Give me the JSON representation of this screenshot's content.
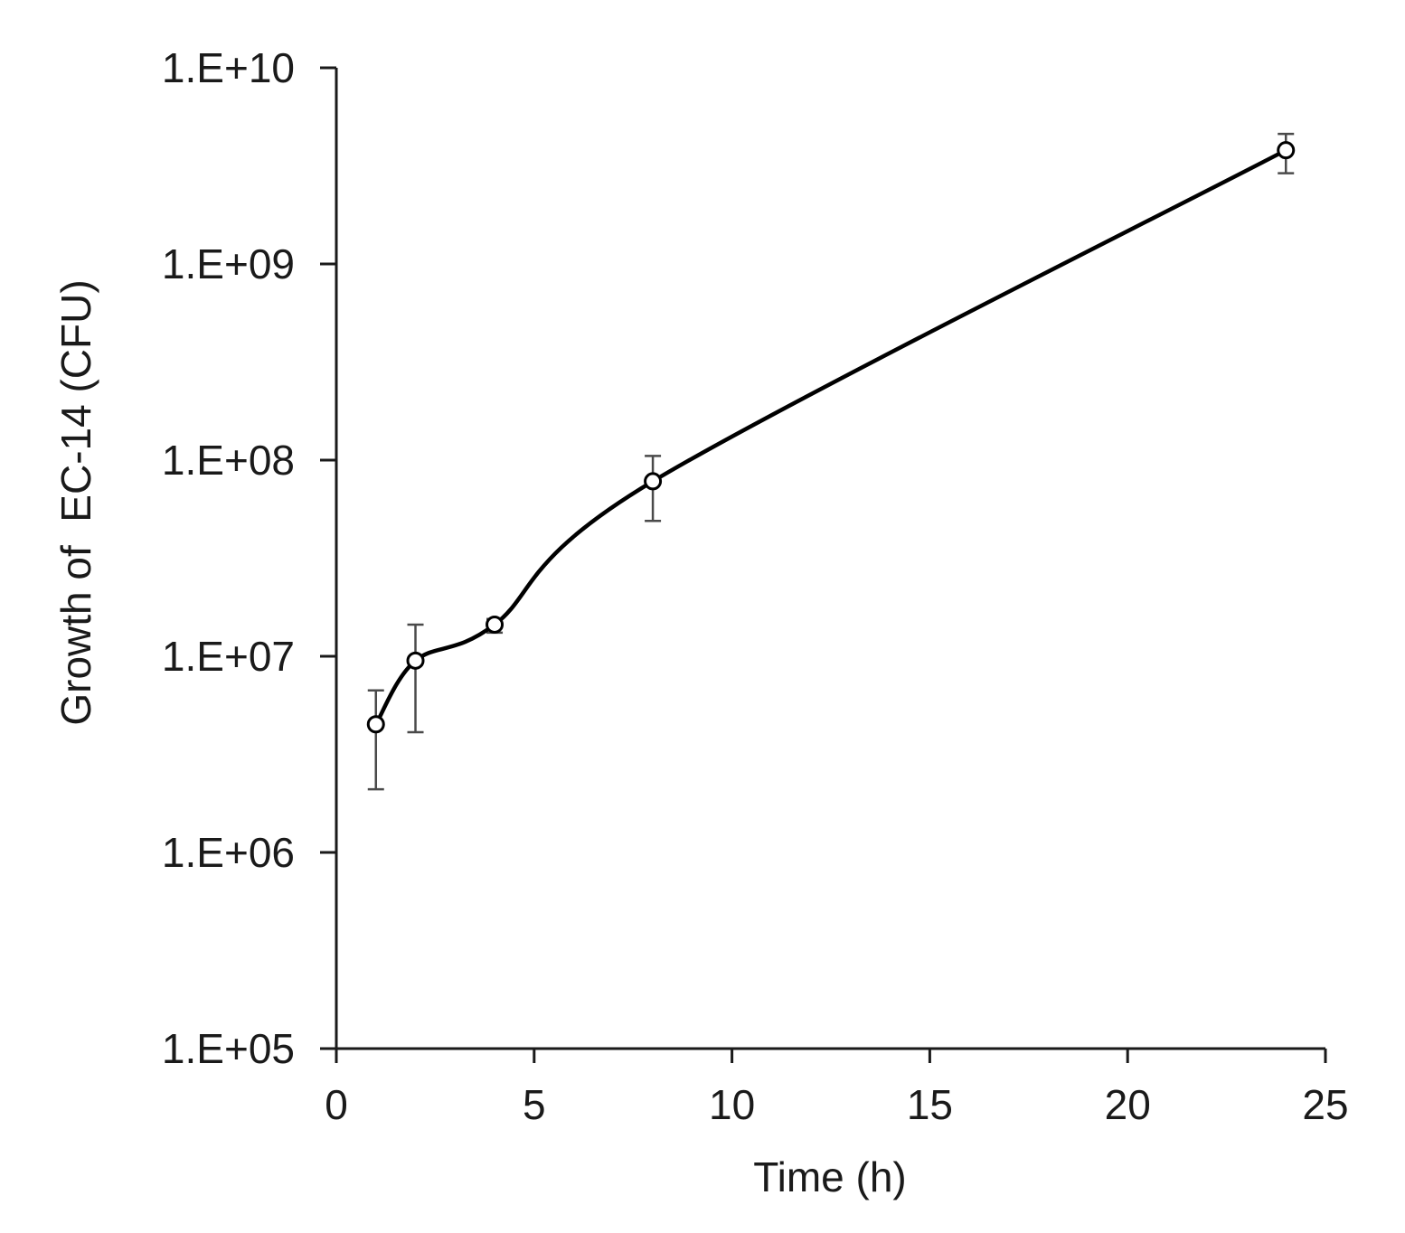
{
  "chart_data": {
    "type": "line",
    "title": "",
    "xlabel": "Time (h)",
    "ylabel": "Growth of  EC-14 (CFU)",
    "xlim": [
      0,
      25
    ],
    "ylim": [
      100000,
      10000000000
    ],
    "yscale": "log",
    "grid": false,
    "smoothed": true,
    "marker": "open-circle",
    "x_ticks": [
      0,
      5,
      10,
      15,
      20,
      25
    ],
    "x_tick_labels": [
      "0",
      "5",
      "10",
      "15",
      "20",
      "25"
    ],
    "y_ticks": [
      100000,
      1000000,
      10000000,
      100000000,
      1000000000,
      10000000000
    ],
    "y_tick_labels": [
      "1.E+05",
      "1.E+06",
      "1.E+07",
      "1.E+08",
      "1.E+09",
      "1.E+10"
    ],
    "series": [
      {
        "x": [
          1,
          2,
          4,
          8,
          24
        ],
        "y": [
          4500000,
          9500000,
          14500000,
          78000000,
          3800000000
        ],
        "y_err_low": [
          2100000,
          4100000,
          13200000,
          49000000,
          2900000000
        ],
        "y_err_high": [
          6700000,
          14500000,
          15500000,
          105000000,
          4600000000
        ]
      }
    ]
  }
}
